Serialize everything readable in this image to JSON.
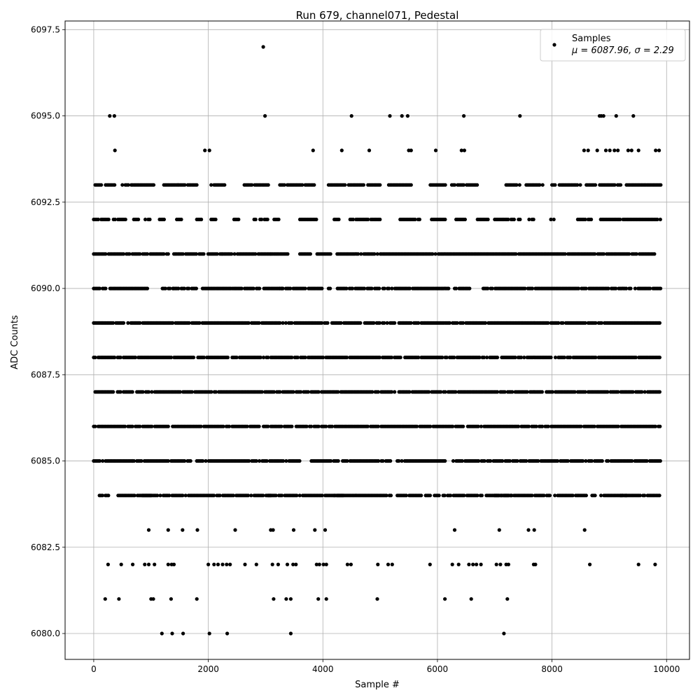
{
  "chart_data": {
    "type": "scatter",
    "title": "Run 679, channel071, Pedestal",
    "xlabel": "Sample #",
    "ylabel": "ADC Counts",
    "xlim": [
      -500,
      10400
    ],
    "ylim": [
      6079.25,
      6097.75
    ],
    "x_ticks": [
      0,
      2000,
      4000,
      6000,
      8000,
      10000
    ],
    "x_tick_labels": [
      "0",
      "2000",
      "4000",
      "6000",
      "8000",
      "10000"
    ],
    "y_ticks": [
      6080.0,
      6082.5,
      6085.0,
      6087.5,
      6090.0,
      6092.5,
      6095.0,
      6097.5
    ],
    "y_tick_labels": [
      "6080.0",
      "6082.5",
      "6085.0",
      "6087.5",
      "6090.0",
      "6092.5",
      "6095.0",
      "6097.5"
    ],
    "grid": true,
    "legend": {
      "placement": "top-right",
      "entries": [
        "Samples",
        "μ = 6087.96, σ = 2.29"
      ]
    },
    "series": [
      {
        "name": "Samples",
        "color": "#000000",
        "n_samples": 9900,
        "mean": 6087.96,
        "sigma": 2.29,
        "levels": [
          {
            "y": 6097,
            "x": [
              2960
            ]
          },
          {
            "y": 6095,
            "x": [
              280,
              360,
              2990,
              4500,
              5170,
              5380,
              5480,
              6460,
              7440,
              8830,
              8860,
              8900,
              9120,
              9420
            ]
          },
          {
            "y": 6094,
            "x": [
              370,
              1940,
              2020,
              3830,
              4330,
              4810,
              5500,
              5540,
              5970,
              6420,
              6470,
              8560,
              8630,
              8790,
              8940,
              9010,
              9090,
              9150,
              9330,
              9390,
              9510,
              9810,
              9870
            ]
          },
          {
            "y": 6093,
            "x": [
              0,
              9900
            ],
            "segments": [
              [
                0,
                380
              ],
              [
                500,
                1050
              ],
              [
                1200,
                1800
              ],
              [
                2050,
                2300
              ],
              [
                2630,
                3050
              ],
              [
                3250,
                3850
              ],
              [
                4100,
                4400
              ],
              [
                4450,
                5000
              ],
              [
                5150,
                5550
              ],
              [
                5850,
                6150
              ],
              [
                6250,
                6700
              ],
              [
                7200,
                7450
              ],
              [
                7550,
                7850
              ],
              [
                8000,
                8500
              ],
              [
                8600,
                9200
              ],
              [
                9300,
                9900
              ]
            ]
          },
          {
            "y": 6092,
            "x": [
              0,
              9900
            ],
            "segments": [
              [
                0,
                280
              ],
              [
                320,
                600
              ],
              [
                700,
                800
              ],
              [
                900,
                1000
              ],
              [
                1150,
                1250
              ],
              [
                1450,
                1550
              ],
              [
                1800,
                1900
              ],
              [
                2050,
                2150
              ],
              [
                2450,
                2550
              ],
              [
                2800,
                3050
              ],
              [
                3150,
                3250
              ],
              [
                3600,
                3900
              ],
              [
                4200,
                4300
              ],
              [
                4450,
                5000
              ],
              [
                5350,
                5700
              ],
              [
                5900,
                6150
              ],
              [
                6300,
                6500
              ],
              [
                6700,
                6900
              ],
              [
                7000,
                7450
              ],
              [
                7600,
                7700
              ],
              [
                7980,
                8050
              ],
              [
                8450,
                8700
              ],
              [
                8850,
                9900
              ]
            ]
          },
          {
            "y": 6091,
            "x": [
              0,
              9900
            ],
            "segments": [
              [
                0,
                1300
              ],
              [
                1400,
                2250
              ],
              [
                2250,
                3100
              ],
              [
                3100,
                3400
              ],
              [
                3600,
                3800
              ],
              [
                3900,
                4150
              ],
              [
                4250,
                9900
              ]
            ]
          },
          {
            "y": 6090,
            "x": [
              0,
              9900
            ],
            "segments": [
              [
                0,
                950
              ],
              [
                1200,
                1400
              ],
              [
                1400,
                1800
              ],
              [
                1900,
                2400
              ],
              [
                2400,
                3300
              ],
              [
                3250,
                3700
              ],
              [
                3750,
                4000
              ],
              [
                4100,
                5000
              ],
              [
                5050,
                6200
              ],
              [
                6300,
                6600
              ],
              [
                6800,
                9900
              ]
            ]
          },
          {
            "y": 6089,
            "x": [
              0,
              9900
            ],
            "segments": [
              [
                0,
                9900
              ]
            ]
          },
          {
            "y": 6088,
            "x": [
              0,
              9900
            ],
            "segments": [
              [
                0,
                9900
              ]
            ]
          },
          {
            "y": 6087,
            "x": [
              0,
              9900
            ],
            "segments": [
              [
                0,
                9900
              ]
            ]
          },
          {
            "y": 6086,
            "x": [
              0,
              9900
            ],
            "segments": [
              [
                0,
                6450
              ],
              [
                6530,
                9900
              ]
            ]
          },
          {
            "y": 6085,
            "x": [
              0,
              9900
            ],
            "segments": [
              [
                0,
                700
              ],
              [
                650,
                1700
              ],
              [
                1800,
                3600
              ],
              [
                3800,
                5200
              ],
              [
                5300,
                6150
              ],
              [
                6250,
                9900
              ]
            ]
          },
          {
            "y": 6084,
            "x": [
              0,
              9900
            ],
            "segments": [
              [
                100,
                300
              ],
              [
                400,
                1000
              ],
              [
                850,
                2100
              ],
              [
                2150,
                3100
              ],
              [
                3050,
                4350
              ],
              [
                4200,
                5200
              ],
              [
                5300,
                6050
              ],
              [
                6100,
                7300
              ],
              [
                7000,
                8000
              ],
              [
                8050,
                8600
              ],
              [
                8700,
                9300
              ],
              [
                9200,
                9900
              ]
            ]
          },
          {
            "y": 6083,
            "x": [
              960,
              1300,
              1550,
              1810,
              2470,
              3090,
              3130,
              3490,
              3860,
              4040,
              6300,
              7080,
              7590,
              7690,
              8570
            ]
          },
          {
            "y": 6082,
            "x": [
              250,
              480,
              680,
              890,
              960,
              1060,
              1300,
              1360,
              1400,
              2000,
              2100,
              2170,
              2250,
              2320,
              2380,
              2640,
              2840,
              3120,
              3220,
              3380,
              3480,
              3530,
              3890,
              3940,
              4010,
              4060,
              4430,
              4490,
              4960,
              5140,
              5210,
              5870,
              6260,
              6370,
              6550,
              6620,
              6680,
              6760,
              7030,
              7100,
              7200,
              7240,
              7680,
              7710,
              8660,
              9510,
              9800
            ]
          },
          {
            "y": 6081,
            "x": [
              200,
              440,
              1000,
              1040,
              1350,
              1800,
              3140,
              3360,
              3440,
              3920,
              4060,
              4950,
              6130,
              6590,
              7220
            ]
          },
          {
            "y": 6080,
            "x": [
              1190,
              1370,
              1560,
              2020,
              2330,
              3440,
              7160
            ]
          }
        ]
      }
    ]
  }
}
